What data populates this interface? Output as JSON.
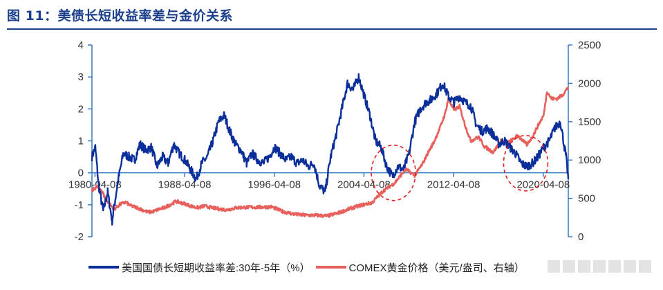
{
  "header": {
    "title": "图 11：美债长短收益率差与金价关系"
  },
  "chart_data": {
    "type": "line",
    "title": "图 11：美债长短收益率差与金价关系",
    "x_ticks": [
      "1980-04-08",
      "1988-04-08",
      "1996-04-08",
      "2004-04-08",
      "2012-04-08",
      "2020-04-08"
    ],
    "x_range": [
      1980.0,
      2022.5
    ],
    "y_left": {
      "range": [
        -2,
        4
      ],
      "ticks": [
        "-2",
        "-1",
        "0",
        "1",
        "2",
        "3",
        "4"
      ]
    },
    "y_right": {
      "range": [
        0,
        2500
      ],
      "ticks": [
        "0",
        "500",
        "1000",
        "1500",
        "2000",
        "2500"
      ]
    },
    "series": [
      {
        "name": "美国国债长短期收益率差:30年-5年（%）",
        "axis": "left",
        "color": "#0a2f9a",
        "x": [
          1980.0,
          1980.3,
          1980.6,
          1981.0,
          1981.4,
          1981.8,
          1982.3,
          1982.8,
          1983.3,
          1983.8,
          1984.3,
          1984.8,
          1985.3,
          1985.8,
          1986.3,
          1986.8,
          1987.3,
          1987.8,
          1988.3,
          1988.8,
          1989.3,
          1989.8,
          1990.3,
          1990.8,
          1991.3,
          1991.8,
          1992.3,
          1992.8,
          1993.3,
          1993.8,
          1994.3,
          1994.8,
          1995.3,
          1995.8,
          1996.3,
          1996.8,
          1997.3,
          1997.8,
          1998.3,
          1998.8,
          1999.3,
          1999.8,
          2000.3,
          2000.8,
          2001.3,
          2001.8,
          2002.3,
          2002.8,
          2003.3,
          2003.8,
          2004.3,
          2004.8,
          2005.3,
          2005.8,
          2006.3,
          2006.8,
          2007.3,
          2007.8,
          2008.3,
          2008.8,
          2009.3,
          2009.8,
          2010.3,
          2010.8,
          2011.3,
          2011.8,
          2012.3,
          2012.8,
          2013.3,
          2013.8,
          2014.3,
          2014.8,
          2015.3,
          2015.8,
          2016.3,
          2016.8,
          2017.3,
          2017.8,
          2018.3,
          2018.8,
          2019.3,
          2019.8,
          2020.3,
          2020.8,
          2021.3,
          2021.8,
          2022.3,
          2022.5
        ],
        "values": [
          0.5,
          0.8,
          -0.4,
          -1.2,
          -0.6,
          -1.5,
          -0.3,
          0.6,
          0.5,
          0.4,
          0.9,
          0.7,
          0.8,
          0.2,
          0.5,
          0.3,
          0.9,
          0.6,
          0.4,
          0.1,
          -0.2,
          0.3,
          0.5,
          1.0,
          1.6,
          1.8,
          1.3,
          0.9,
          0.7,
          0.3,
          0.6,
          0.4,
          0.3,
          0.5,
          0.8,
          0.6,
          0.4,
          0.5,
          0.3,
          0.4,
          0.2,
          0.3,
          -0.4,
          -0.6,
          0.5,
          1.2,
          2.0,
          2.8,
          2.6,
          3.0,
          2.4,
          1.8,
          1.0,
          0.8,
          0.2,
          -0.1,
          0.2,
          0.1,
          0.6,
          1.6,
          2.0,
          2.2,
          2.3,
          2.5,
          2.8,
          2.4,
          2.2,
          2.4,
          2.2,
          2.1,
          1.5,
          1.3,
          1.4,
          1.2,
          0.9,
          1.0,
          0.8,
          0.6,
          0.3,
          0.2,
          0.3,
          0.5,
          0.8,
          1.0,
          1.4,
          1.6,
          0.5,
          -0.2
        ]
      },
      {
        "name": "COMEX黄金价格（美元/盎司、右轴）",
        "axis": "right",
        "color": "#e8605c",
        "x": [
          1980.0,
          1980.4,
          1980.8,
          1981.2,
          1981.6,
          1982.0,
          1982.5,
          1983.0,
          1983.5,
          1984.0,
          1984.5,
          1985.0,
          1985.5,
          1986.0,
          1986.5,
          1987.0,
          1987.5,
          1988.0,
          1988.5,
          1989.0,
          1989.5,
          1990.0,
          1991.0,
          1992.0,
          1993.0,
          1994.0,
          1995.0,
          1996.0,
          1997.0,
          1998.0,
          1999.0,
          2000.0,
          2001.0,
          2002.0,
          2003.0,
          2004.0,
          2005.0,
          2006.0,
          2007.0,
          2008.0,
          2008.8,
          2009.5,
          2010.0,
          2010.5,
          2011.0,
          2011.5,
          2011.8,
          2012.3,
          2012.8,
          2013.3,
          2013.8,
          2014.5,
          2015.0,
          2015.8,
          2016.5,
          2017.0,
          2017.5,
          2018.0,
          2018.8,
          2019.3,
          2019.8,
          2020.3,
          2020.6,
          2021.0,
          2021.5,
          2022.0,
          2022.5
        ],
        "values": [
          600,
          650,
          620,
          500,
          420,
          360,
          420,
          450,
          400,
          380,
          350,
          320,
          330,
          360,
          380,
          420,
          460,
          440,
          420,
          390,
          380,
          400,
          370,
          350,
          380,
          385,
          385,
          390,
          330,
          295,
          280,
          280,
          270,
          310,
          365,
          410,
          445,
          600,
          700,
          880,
          800,
          950,
          1100,
          1230,
          1400,
          1600,
          1800,
          1650,
          1700,
          1450,
          1250,
          1300,
          1180,
          1100,
          1250,
          1220,
          1260,
          1320,
          1200,
          1300,
          1450,
          1580,
          1900,
          1800,
          1800,
          1850,
          1950
        ]
      }
    ],
    "annotations": [
      {
        "type": "dashed-circle",
        "color": "#e02020",
        "x": 2006.9,
        "y_left": 0.0
      },
      {
        "type": "dashed-circle",
        "color": "#e02020",
        "x": 2018.7,
        "y_left": 0.3
      }
    ]
  }
}
